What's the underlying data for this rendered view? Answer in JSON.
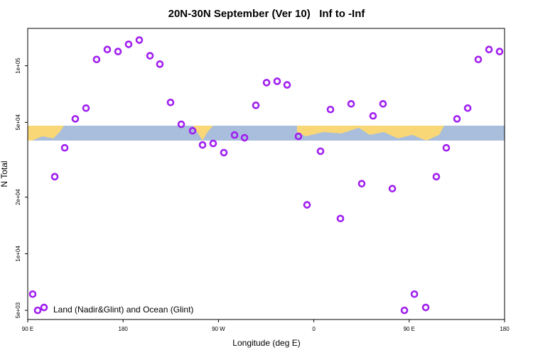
{
  "chart_data": {
    "type": "scatter",
    "title": "20N-30N September (Ver 10)   Inf to -Inf",
    "x_label": "Longitude (deg E)",
    "y_label": "N Total",
    "annotation": "Land (Nadir&Glint) and Ocean (Glint)",
    "color": "#a020f0",
    "log_y": true,
    "x": [
      94.7,
      99.4,
      105.4,
      115.5,
      124.9,
      134.9,
      145,
      155,
      165.1,
      175.2,
      185.2,
      195.3,
      205.4,
      214.7,
      224.8,
      234.9,
      245.6,
      255,
      265,
      275.1,
      285.2,
      294.6,
      305.3,
      315.4,
      325.4,
      334.8,
      345.5,
      353.6,
      366.3,
      375.7,
      385.1,
      395.2,
      405.2,
      415.9,
      425.3,
      434.1,
      445.5,
      454.9,
      465.6,
      475.6,
      485,
      495.1,
      505.2,
      515.2,
      525.3,
      535.3
    ],
    "values": [
      6100,
      5000,
      5180,
      25700,
      36600,
      52200,
      59500,
      108000,
      122000,
      119000,
      130000,
      137000,
      113000,
      102000,
      63800,
      48800,
      45100,
      37900,
      38600,
      34500,
      42800,
      41400,
      61600,
      81300,
      82700,
      79100,
      42100,
      18200,
      35100,
      58500,
      15400,
      62700,
      23600,
      54100,
      62700,
      22200,
      5000,
      6100,
      5180,
      25700,
      36600,
      52200,
      59500,
      108000,
      122000,
      119000
    ],
    "xlim": [
      90,
      540
    ],
    "xticks": [
      {
        "value": 90,
        "label": "90 E"
      },
      {
        "value": 180,
        "label": "180"
      },
      {
        "value": 270,
        "label": "90 W"
      },
      {
        "value": 360,
        "label": "0"
      },
      {
        "value": 450,
        "label": "90 E"
      },
      {
        "value": 540,
        "label": "180"
      }
    ],
    "ylim": [
      4470,
      158000
    ],
    "yticks": [
      {
        "value": 5000,
        "label": "5e+03"
      },
      {
        "value": 10000,
        "label": "1e+04"
      },
      {
        "value": 20000,
        "label": "2e+04"
      },
      {
        "value": 50000,
        "label": "5e+04"
      },
      {
        "value": 100000,
        "label": "1e+05"
      }
    ]
  }
}
